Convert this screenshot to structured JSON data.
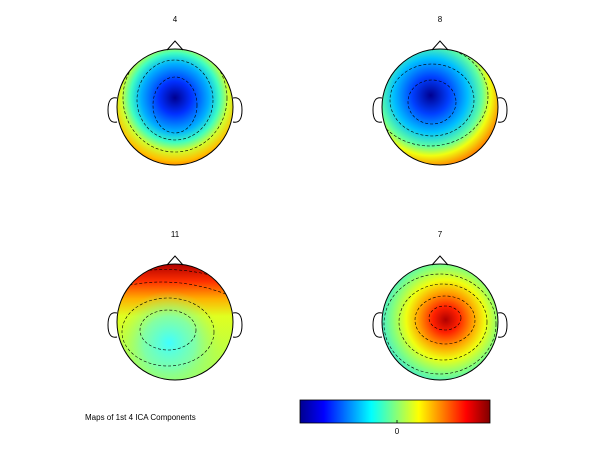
{
  "maps": [
    {
      "title": "4"
    },
    {
      "title": "8"
    },
    {
      "title": "11"
    },
    {
      "title": "7"
    }
  ],
  "caption": "Maps of 1st 4 ICA Components",
  "colorbar": {
    "tick_label": "0"
  }
}
